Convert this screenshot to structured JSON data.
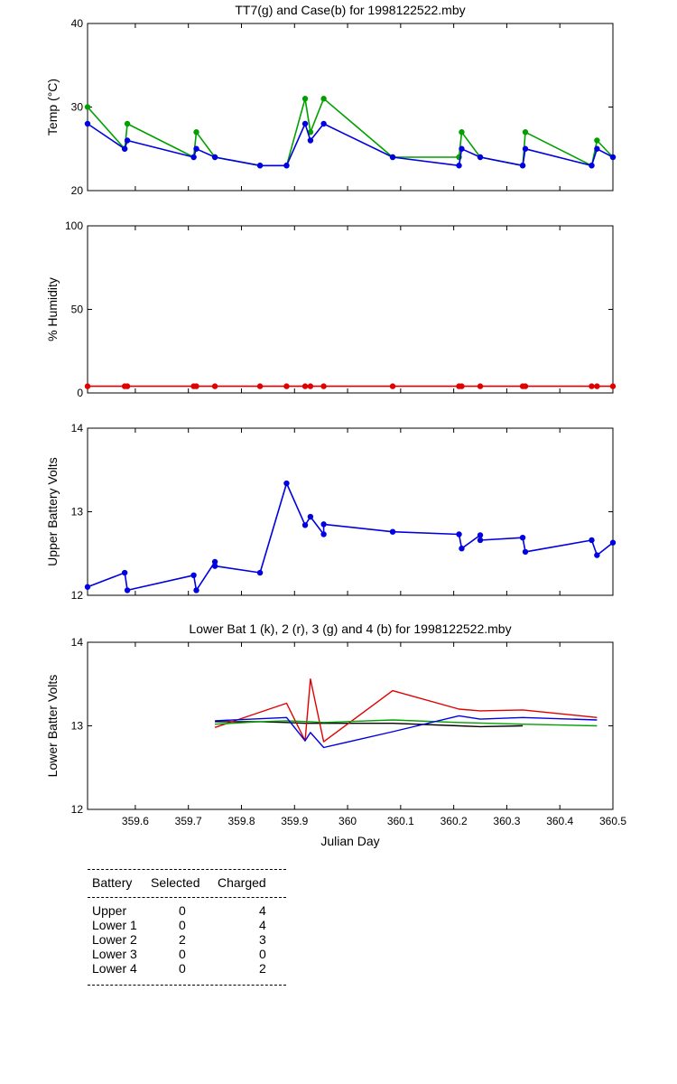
{
  "colors": {
    "green": "#00a000",
    "blue": "#0000e0",
    "red": "#e00000",
    "black": "#000000"
  },
  "chart_data": [
    {
      "type": "line",
      "title": "TT7(g) and Case(b) for 1998122522.mby",
      "xlabel": "",
      "ylabel": "Temp  (°C)",
      "xlim": [
        359.51,
        360.5
      ],
      "ylim": [
        20,
        40
      ],
      "yticks": [
        "20",
        "30",
        "40"
      ],
      "ytick_values": [
        20,
        30,
        40
      ],
      "xtick_values": [
        359.6,
        359.7,
        359.8,
        359.9,
        360,
        360.1,
        360.2,
        360.3,
        360.4,
        360.5
      ],
      "series": [
        {
          "name": "TT7",
          "color": "green",
          "marker": true,
          "x": [
            359.51,
            359.58,
            359.585,
            359.71,
            359.715,
            359.75,
            359.835,
            359.885,
            359.92,
            359.93,
            359.955,
            360.085,
            360.21,
            360.215,
            360.25,
            360.33,
            360.335,
            360.46,
            360.47,
            360.5
          ],
          "y": [
            30,
            25,
            28,
            24,
            27,
            24,
            23,
            23,
            31,
            27,
            31,
            24,
            24,
            27,
            24,
            23,
            27,
            23,
            26,
            24
          ]
        },
        {
          "name": "Case",
          "color": "blue",
          "marker": true,
          "x": [
            359.51,
            359.58,
            359.585,
            359.71,
            359.715,
            359.75,
            359.835,
            359.885,
            359.92,
            359.93,
            359.955,
            360.085,
            360.21,
            360.215,
            360.25,
            360.33,
            360.335,
            360.46,
            360.47,
            360.5
          ],
          "y": [
            28,
            25,
            26,
            24,
            25,
            24,
            23,
            23,
            28,
            26,
            28,
            24,
            23,
            25,
            24,
            23,
            25,
            23,
            25,
            24
          ]
        }
      ]
    },
    {
      "type": "line",
      "title": "",
      "xlabel": "",
      "ylabel": "% Humidity",
      "xlim": [
        359.51,
        360.5
      ],
      "ylim": [
        0,
        100
      ],
      "yticks": [
        "0",
        "50",
        "100"
      ],
      "ytick_values": [
        0,
        50,
        100
      ],
      "xtick_values": [
        359.6,
        359.7,
        359.8,
        359.9,
        360,
        360.1,
        360.2,
        360.3,
        360.4,
        360.5
      ],
      "series": [
        {
          "name": "Humidity",
          "color": "red",
          "marker": true,
          "x": [
            359.51,
            359.58,
            359.585,
            359.71,
            359.715,
            359.75,
            359.835,
            359.885,
            359.92,
            359.93,
            359.955,
            360.085,
            360.21,
            360.215,
            360.25,
            360.33,
            360.335,
            360.46,
            360.47,
            360.5
          ],
          "y": [
            4,
            4,
            4,
            4,
            4,
            4,
            4,
            4,
            4,
            4,
            4,
            4,
            4,
            4,
            4,
            4,
            4,
            4,
            4,
            4
          ]
        }
      ]
    },
    {
      "type": "line",
      "title": "",
      "xlabel": "",
      "ylabel": "Upper Battery Volts",
      "xlim": [
        359.51,
        360.5
      ],
      "ylim": [
        12,
        14
      ],
      "yticks": [
        "12",
        "13",
        "14"
      ],
      "ytick_values": [
        12,
        13,
        14
      ],
      "xtick_values": [
        359.6,
        359.7,
        359.8,
        359.9,
        360,
        360.1,
        360.2,
        360.3,
        360.4,
        360.5
      ],
      "series": [
        {
          "name": "Upper Battery",
          "color": "blue",
          "marker": true,
          "x": [
            359.51,
            359.58,
            359.585,
            359.71,
            359.715,
            359.75,
            359.75,
            359.835,
            359.885,
            359.92,
            359.93,
            359.955,
            359.955,
            360.085,
            360.21,
            360.215,
            360.25,
            360.25,
            360.33,
            360.335,
            360.46,
            360.47,
            360.5
          ],
          "y": [
            12.1,
            12.27,
            12.06,
            12.24,
            12.06,
            12.4,
            12.35,
            12.27,
            13.34,
            12.84,
            12.94,
            12.73,
            12.85,
            12.76,
            12.73,
            12.56,
            12.72,
            12.66,
            12.69,
            12.52,
            12.66,
            12.48,
            12.63
          ]
        }
      ]
    },
    {
      "type": "line",
      "title": "Lower Bat 1 (k), 2 (r), 3 (g) and 4 (b) for 1998122522.mby",
      "xlabel": "Julian Day",
      "ylabel": "Lower Batter Volts",
      "xlim": [
        359.51,
        360.5
      ],
      "ylim": [
        12,
        14
      ],
      "yticks": [
        "12",
        "13",
        "14"
      ],
      "ytick_values": [
        12,
        13,
        14
      ],
      "xticks": [
        "359.6",
        "359.7",
        "359.8",
        "359.9",
        "360",
        "360.1",
        "360.2",
        "360.3",
        "360.4",
        "360.5"
      ],
      "xtick_values": [
        359.6,
        359.7,
        359.8,
        359.9,
        360,
        360.1,
        360.2,
        360.3,
        360.4,
        360.5
      ],
      "series": [
        {
          "name": "Lower 1",
          "color": "black",
          "marker": false,
          "x": [
            359.75,
            359.835,
            359.885,
            359.92,
            359.955,
            360.085,
            360.21,
            360.25,
            360.33
          ],
          "y": [
            13.05,
            13.05,
            13.04,
            13.03,
            13.03,
            13.03,
            13.0,
            12.99,
            13.0
          ]
        },
        {
          "name": "Lower 2",
          "color": "red",
          "marker": false,
          "x": [
            359.75,
            359.885,
            359.92,
            359.93,
            359.955,
            360.085,
            360.21,
            360.25,
            360.33,
            360.47
          ],
          "y": [
            12.98,
            13.27,
            12.82,
            13.56,
            12.81,
            13.42,
            13.2,
            13.18,
            13.19,
            13.1
          ]
        },
        {
          "name": "Lower 3",
          "color": "green",
          "marker": false,
          "x": [
            359.75,
            359.835,
            359.885,
            359.93,
            359.955,
            360.085,
            360.21,
            360.33,
            360.47
          ],
          "y": [
            13.02,
            13.05,
            13.06,
            13.05,
            13.04,
            13.07,
            13.04,
            13.02,
            13.0
          ]
        },
        {
          "name": "Lower 4",
          "color": "blue",
          "marker": false,
          "x": [
            359.75,
            359.885,
            359.92,
            359.93,
            359.955,
            360.085,
            360.21,
            360.25,
            360.33,
            360.47
          ],
          "y": [
            13.06,
            13.1,
            12.82,
            12.92,
            12.74,
            12.93,
            13.12,
            13.08,
            13.1,
            13.07
          ]
        }
      ]
    }
  ],
  "table": {
    "headers": [
      "Battery",
      "Selected",
      "Charged"
    ],
    "rows": [
      {
        "battery": "Upper",
        "selected": "0",
        "charged": "4"
      },
      {
        "battery": "Lower 1",
        "selected": "0",
        "charged": "4"
      },
      {
        "battery": "Lower 2",
        "selected": "2",
        "charged": "3"
      },
      {
        "battery": "Lower 3",
        "selected": "0",
        "charged": "0"
      },
      {
        "battery": "Lower 4",
        "selected": "0",
        "charged": "2"
      }
    ]
  }
}
